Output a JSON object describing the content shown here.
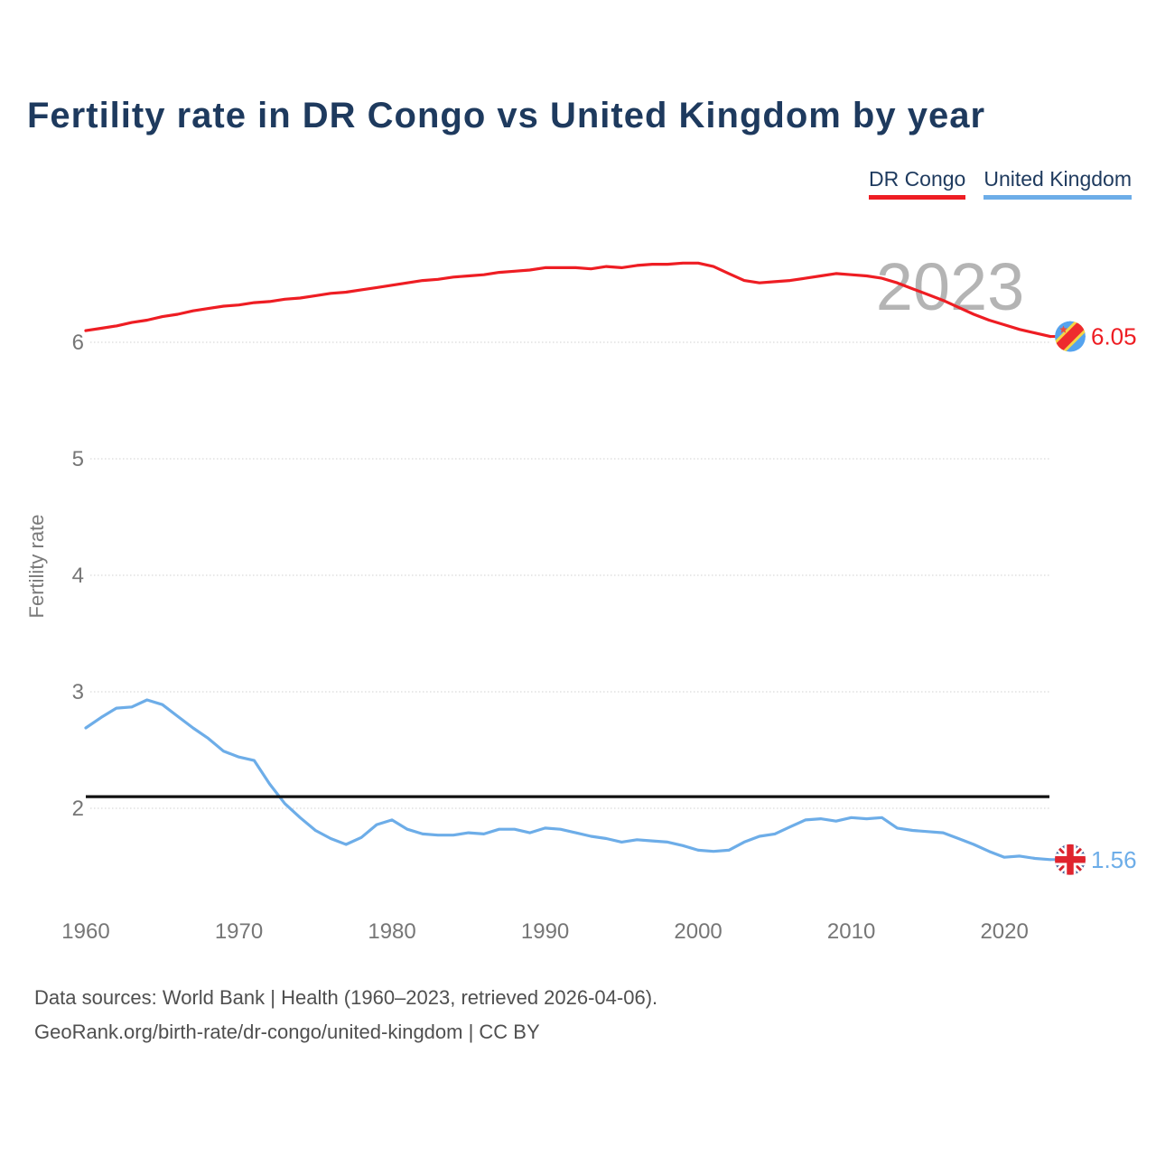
{
  "title": "Fertility rate in DR Congo vs United Kingdom by year",
  "watermark_year": "2023",
  "legend": {
    "dr_congo": {
      "label": "DR Congo",
      "color": "#ee1d23"
    },
    "united_kingdom": {
      "label": "United Kingdom",
      "color": "#6dade8"
    }
  },
  "end_labels": {
    "dr_congo": "6.05",
    "united_kingdom": "1.56"
  },
  "footer": {
    "line1": "Data sources: World Bank | Health (1960–2023, retrieved 2026-04-06).",
    "line2": "GeoRank.org/birth-rate/dr-congo/united-kingdom | CC BY"
  },
  "colors": {
    "title": "#1e3a5e",
    "tick_text": "#767676",
    "axis_label": "#7a7a7a",
    "watermark": "#b4b4b4",
    "gridline": "#d0d0d0",
    "reference_line": "#111111",
    "footer_text": "#4f4f4f",
    "dr_congo": "#ee1d23",
    "united_kingdom": "#6dade8"
  },
  "chart_data": {
    "type": "line",
    "title": "Fertility rate in DR Congo vs United Kingdom by year",
    "xlabel": "",
    "ylabel": "Fertility rate",
    "xlim": [
      1960,
      2023
    ],
    "ylim": [
      1.4,
      7.0
    ],
    "grid": "horizontal-dotted",
    "legend_position": "top-right",
    "y_ticks": [
      6,
      5,
      4,
      3,
      2
    ],
    "x_ticks": [
      1960,
      1970,
      1980,
      1990,
      2000,
      2010,
      2020
    ],
    "reference_line": {
      "value": 2.1,
      "color": "#111111"
    },
    "x": [
      1960,
      1961,
      1962,
      1963,
      1964,
      1965,
      1966,
      1967,
      1968,
      1969,
      1970,
      1971,
      1972,
      1973,
      1974,
      1975,
      1976,
      1977,
      1978,
      1979,
      1980,
      1981,
      1982,
      1983,
      1984,
      1985,
      1986,
      1987,
      1988,
      1989,
      1990,
      1991,
      1992,
      1993,
      1994,
      1995,
      1996,
      1997,
      1998,
      1999,
      2000,
      2001,
      2002,
      2003,
      2004,
      2005,
      2006,
      2007,
      2008,
      2009,
      2010,
      2011,
      2012,
      2013,
      2014,
      2015,
      2016,
      2017,
      2018,
      2019,
      2020,
      2021,
      2022,
      2023
    ],
    "series": [
      {
        "name": "DR Congo",
        "color": "#ee1d23",
        "end_value": 6.05,
        "values": [
          6.1,
          6.12,
          6.14,
          6.17,
          6.19,
          6.22,
          6.24,
          6.27,
          6.29,
          6.31,
          6.32,
          6.34,
          6.35,
          6.37,
          6.38,
          6.4,
          6.42,
          6.43,
          6.45,
          6.47,
          6.49,
          6.51,
          6.53,
          6.54,
          6.56,
          6.57,
          6.58,
          6.6,
          6.61,
          6.62,
          6.64,
          6.64,
          6.64,
          6.63,
          6.65,
          6.64,
          6.66,
          6.67,
          6.67,
          6.68,
          6.68,
          6.65,
          6.59,
          6.53,
          6.51,
          6.52,
          6.53,
          6.55,
          6.57,
          6.59,
          6.58,
          6.57,
          6.55,
          6.51,
          6.46,
          6.41,
          6.36,
          6.3,
          6.24,
          6.19,
          6.15,
          6.11,
          6.08,
          6.05
        ]
      },
      {
        "name": "United Kingdom",
        "color": "#6dade8",
        "end_value": 1.56,
        "values": [
          2.69,
          2.78,
          2.86,
          2.87,
          2.93,
          2.89,
          2.79,
          2.69,
          2.6,
          2.49,
          2.44,
          2.41,
          2.21,
          2.04,
          1.92,
          1.81,
          1.74,
          1.69,
          1.75,
          1.86,
          1.9,
          1.82,
          1.78,
          1.77,
          1.77,
          1.79,
          1.78,
          1.82,
          1.82,
          1.79,
          1.83,
          1.82,
          1.79,
          1.76,
          1.74,
          1.71,
          1.73,
          1.72,
          1.71,
          1.68,
          1.64,
          1.63,
          1.64,
          1.71,
          1.76,
          1.78,
          1.84,
          1.9,
          1.91,
          1.89,
          1.92,
          1.91,
          1.92,
          1.83,
          1.81,
          1.8,
          1.79,
          1.74,
          1.69,
          1.63,
          1.58,
          1.59,
          1.57,
          1.56
        ]
      }
    ]
  }
}
